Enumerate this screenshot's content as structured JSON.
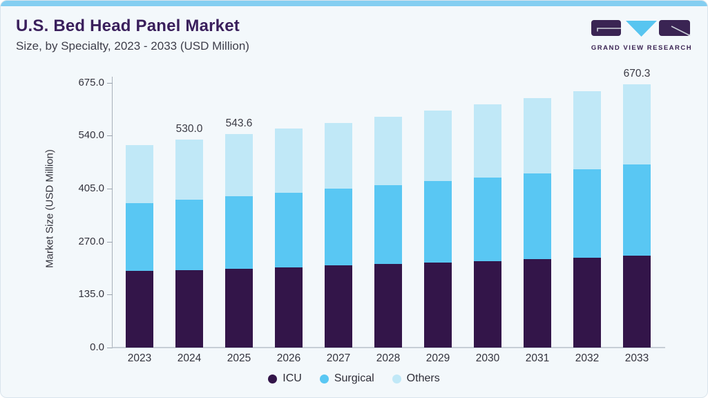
{
  "header": {
    "title": "U.S. Bed Head Panel Market",
    "subtitle": "Size, by Specialty, 2023 - 2033 (USD Million)"
  },
  "logo": {
    "text": "GRAND VIEW RESEARCH",
    "purple": "#3a2453",
    "blue": "#58c5f0"
  },
  "colors": {
    "accent_bar": "#84cef1",
    "card_background": "#f3f8fb",
    "title_text": "#3a1f5c",
    "axis_text": "#33333d"
  },
  "chart_data": {
    "type": "bar",
    "stacked": true,
    "title": "U.S. Bed Head Panel Market Size, by Specialty, 2023 - 2033 (USD Million)",
    "ylabel": "Market Size (USD Million)",
    "xlabel": "",
    "grid": false,
    "legend_position": "bottom",
    "ylim": [
      0,
      675
    ],
    "y_ticks": [
      "0.0",
      "135.0",
      "270.0",
      "405.0",
      "540.0",
      "675.0"
    ],
    "categories": [
      "2023",
      "2024",
      "2025",
      "2026",
      "2027",
      "2028",
      "2029",
      "2030",
      "2031",
      "2032",
      "2033"
    ],
    "series": [
      {
        "name": "ICU",
        "color": "#331549",
        "values": [
          195.0,
          197.3,
          200.3,
          203.8,
          208.6,
          213.2,
          217.4,
          220.2,
          225.0,
          229.7,
          234.3
        ]
      },
      {
        "name": "Surgical",
        "color": "#59c7f3",
        "values": [
          172.7,
          179.7,
          184.4,
          190.8,
          196.1,
          200.8,
          207.2,
          212.1,
          218.4,
          224.3,
          231.5
        ]
      },
      {
        "name": "Others",
        "color": "#c0e8f7",
        "values": [
          148.6,
          153.0,
          158.9,
          163.4,
          168.1,
          174.0,
          179.0,
          187.3,
          192.6,
          198.9,
          204.5
        ]
      }
    ],
    "totals": [
      516.3,
      530.0,
      543.6,
      558.0,
      572.8,
      588.0,
      603.6,
      619.6,
      636.0,
      652.9,
      670.3
    ],
    "visible_total_labels": {
      "2024": "530.0",
      "2025": "543.6",
      "2033": "670.3"
    }
  }
}
